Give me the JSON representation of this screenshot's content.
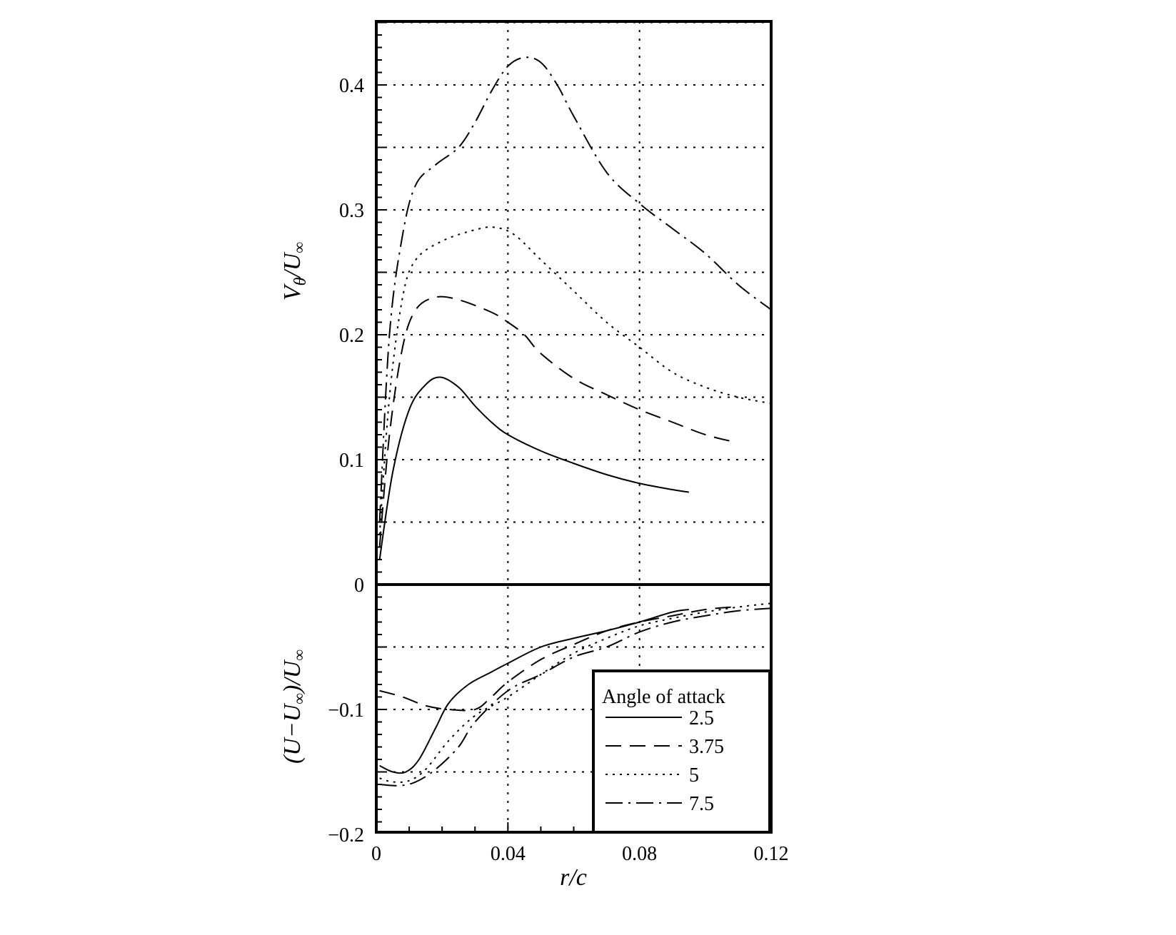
{
  "chart_data": [
    {
      "type": "line",
      "panel": "upper",
      "ylabel": "Vθ/U∞",
      "ylabel_main": "V",
      "ylabel_sub": "θ",
      "ylabel_tail": "/U",
      "ylabel_inf": "∞",
      "xlim": [
        0,
        0.12
      ],
      "ylim": [
        0,
        0.45
      ],
      "yticks": [
        0,
        0.1,
        0.2,
        0.3,
        0.4
      ],
      "ytick_labels": [
        "0",
        "0.1",
        "0.2",
        "0.3",
        "0.4"
      ],
      "grid": true,
      "series": [
        {
          "name": "2.5",
          "style": "solid",
          "x": [
            0.001,
            0.005,
            0.01,
            0.015,
            0.0195,
            0.025,
            0.03,
            0.035,
            0.04,
            0.05,
            0.06,
            0.07,
            0.08,
            0.09,
            0.095
          ],
          "y": [
            0.02,
            0.09,
            0.14,
            0.16,
            0.166,
            0.158,
            0.143,
            0.13,
            0.12,
            0.107,
            0.097,
            0.088,
            0.081,
            0.076,
            0.074
          ]
        },
        {
          "name": "3.75",
          "style": "dashed",
          "x": [
            0.001,
            0.004,
            0.008,
            0.012,
            0.018,
            0.025,
            0.035,
            0.04,
            0.045,
            0.05,
            0.06,
            0.07,
            0.08,
            0.09,
            0.1,
            0.109
          ],
          "y": [
            0.03,
            0.12,
            0.19,
            0.22,
            0.23,
            0.228,
            0.218,
            0.21,
            0.2,
            0.185,
            0.165,
            0.152,
            0.14,
            0.13,
            0.12,
            0.114
          ]
        },
        {
          "name": "5",
          "style": "dotted",
          "x": [
            0.001,
            0.004,
            0.008,
            0.012,
            0.02,
            0.03,
            0.036,
            0.042,
            0.05,
            0.06,
            0.07,
            0.08,
            0.09,
            0.1,
            0.11,
            0.12
          ],
          "y": [
            0.04,
            0.15,
            0.23,
            0.26,
            0.275,
            0.284,
            0.286,
            0.28,
            0.26,
            0.235,
            0.21,
            0.19,
            0.17,
            0.158,
            0.15,
            0.145
          ]
        },
        {
          "name": "7.5",
          "style": "dashdot",
          "x": [
            0.001,
            0.004,
            0.008,
            0.012,
            0.018,
            0.025,
            0.03,
            0.035,
            0.04,
            0.045,
            0.05,
            0.055,
            0.06,
            0.07,
            0.08,
            0.09,
            0.1,
            0.11,
            0.12
          ],
          "y": [
            0.05,
            0.2,
            0.28,
            0.32,
            0.336,
            0.35,
            0.37,
            0.395,
            0.415,
            0.422,
            0.418,
            0.4,
            0.375,
            0.33,
            0.305,
            0.285,
            0.265,
            0.24,
            0.22
          ]
        }
      ]
    },
    {
      "type": "line",
      "panel": "lower",
      "xlabel": "r/c",
      "ylabel": "(U−U∞)/U∞",
      "ylabel_a": "(U−U",
      "ylabel_b": ")/U",
      "ylabel_inf": "∞",
      "xlim": [
        0,
        0.12
      ],
      "ylim": [
        -0.2,
        0
      ],
      "xticks": [
        0,
        0.04,
        0.08,
        0.12
      ],
      "xtick_labels": [
        "0",
        "0.04",
        "0.08",
        "0.12"
      ],
      "yticks": [
        -0.1,
        -0.2
      ],
      "ytick_labels": [
        "−0.1",
        "−0.2"
      ],
      "grid": true,
      "legend": {
        "title": "Angle of attack",
        "position": "bottom-right",
        "entries": [
          "2.5",
          "3.75",
          "5",
          "7.5"
        ]
      },
      "series": [
        {
          "name": "2.5",
          "style": "solid",
          "x": [
            0.001,
            0.005,
            0.009,
            0.013,
            0.018,
            0.022,
            0.028,
            0.035,
            0.04,
            0.05,
            0.06,
            0.07,
            0.08,
            0.09,
            0.095
          ],
          "y": [
            -0.145,
            -0.15,
            -0.15,
            -0.14,
            -0.115,
            -0.095,
            -0.08,
            -0.07,
            -0.063,
            -0.05,
            -0.043,
            -0.037,
            -0.03,
            -0.022,
            -0.02
          ]
        },
        {
          "name": "3.75",
          "style": "dashed",
          "x": [
            0.001,
            0.008,
            0.015,
            0.022,
            0.03,
            0.035,
            0.04,
            0.05,
            0.06,
            0.07,
            0.08,
            0.09,
            0.1,
            0.108
          ],
          "y": [
            -0.085,
            -0.09,
            -0.097,
            -0.1,
            -0.1,
            -0.09,
            -0.078,
            -0.06,
            -0.048,
            -0.037,
            -0.03,
            -0.025,
            -0.02,
            -0.018
          ]
        },
        {
          "name": "5",
          "style": "dotted",
          "x": [
            0.001,
            0.005,
            0.01,
            0.015,
            0.022,
            0.03,
            0.04,
            0.05,
            0.06,
            0.07,
            0.08,
            0.09,
            0.1,
            0.11,
            0.12
          ],
          "y": [
            -0.155,
            -0.158,
            -0.157,
            -0.148,
            -0.125,
            -0.105,
            -0.09,
            -0.072,
            -0.055,
            -0.043,
            -0.033,
            -0.027,
            -0.022,
            -0.018,
            -0.015
          ]
        },
        {
          "name": "7.5",
          "style": "dashdot",
          "x": [
            0.001,
            0.007,
            0.012,
            0.018,
            0.025,
            0.03,
            0.04,
            0.05,
            0.06,
            0.07,
            0.08,
            0.09,
            0.1,
            0.11,
            0.12
          ],
          "y": [
            -0.16,
            -0.161,
            -0.158,
            -0.148,
            -0.13,
            -0.11,
            -0.085,
            -0.072,
            -0.058,
            -0.05,
            -0.038,
            -0.03,
            -0.025,
            -0.021,
            -0.019
          ]
        }
      ]
    }
  ]
}
